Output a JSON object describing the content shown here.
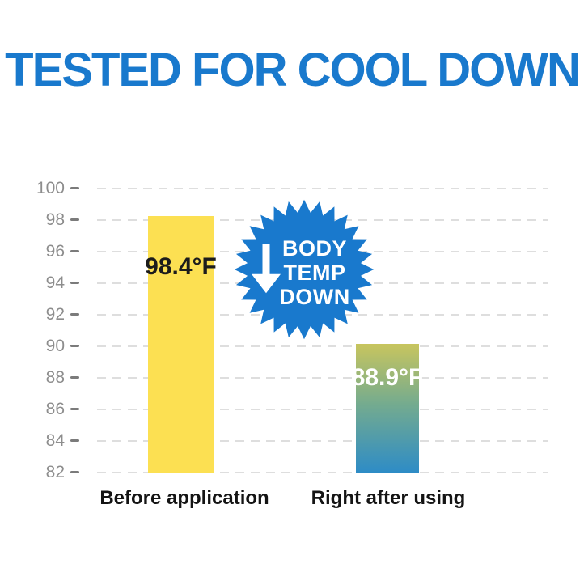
{
  "title": "TESTED FOR COOL DOWN",
  "colors": {
    "brand_blue": "#1979cd",
    "bar_before_yellow": "#fce052",
    "bar_after_gradient_top": "#c8c55e",
    "bar_after_gradient_mid": "#74ab8f",
    "bar_after_gradient_bottom": "#2e8cc6",
    "gridline_gray": "#dedede",
    "axis_text_gray": "#8d8d8d",
    "value_text_dark": "#1c1c1c",
    "value_text_light": "#ffffff"
  },
  "badge": {
    "line1": "BODY",
    "line2": "TEMP",
    "line3": "DOWN",
    "icon": "down-arrow-icon"
  },
  "chart_data": {
    "type": "bar",
    "title": "TESTED FOR COOL DOWN",
    "categories": [
      "Before application",
      "Right after using"
    ],
    "values": [
      98.4,
      88.9
    ],
    "value_labels": [
      "98.4°F",
      "88.9°F"
    ],
    "unit": "°F",
    "ylabel": "",
    "xlabel": "",
    "ylim": [
      82,
      100
    ],
    "yticks": [
      100,
      98,
      96,
      94,
      92,
      90,
      88,
      86,
      84,
      82
    ],
    "grid": "dashed-horizontal",
    "legend_position": "none"
  }
}
